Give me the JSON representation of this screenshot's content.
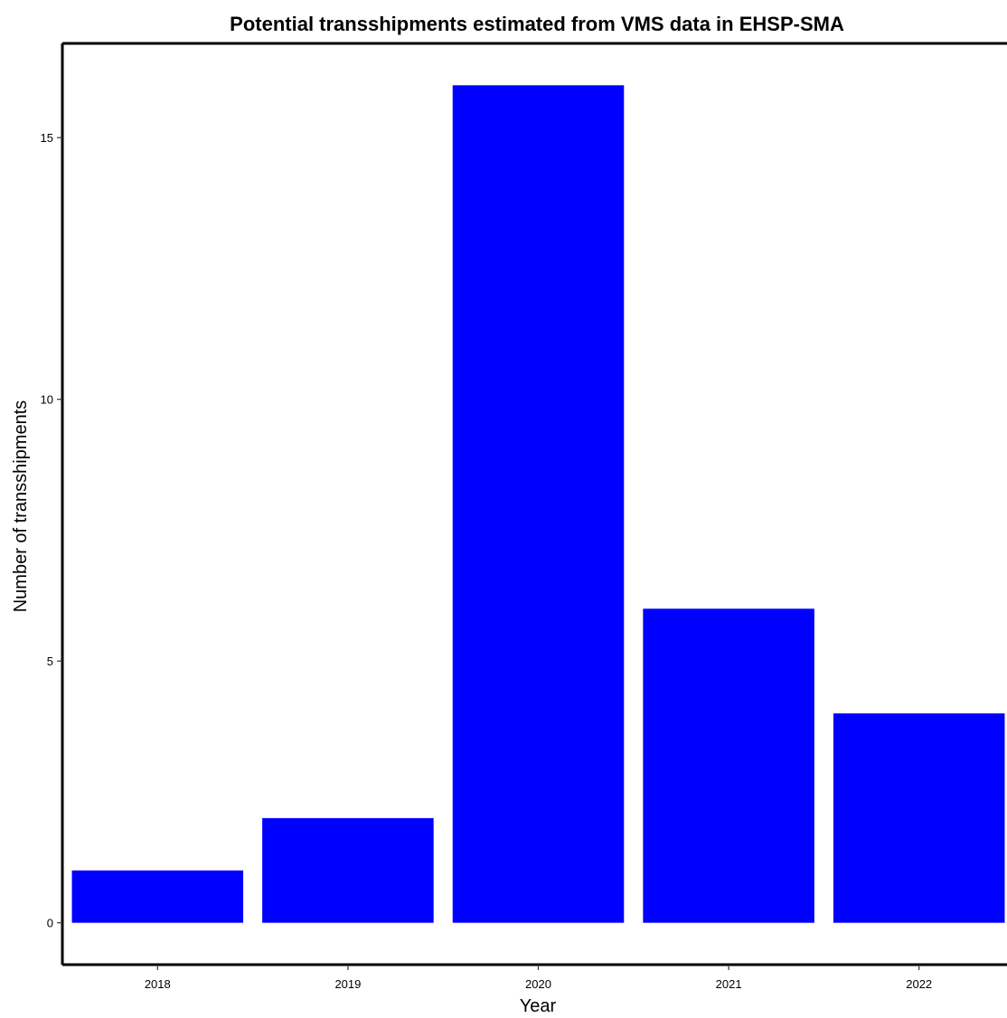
{
  "chart_data": {
    "type": "bar",
    "title": "Potential transshipments estimated from VMS data in EHSP-SMA",
    "xlabel": "Year",
    "ylabel": "Number of transshipments",
    "categories": [
      "2018",
      "2019",
      "2020",
      "2021",
      "2022"
    ],
    "values": [
      1,
      2,
      16,
      6,
      4
    ],
    "ylim": [
      -0.8,
      16.8
    ],
    "yticks": [
      0,
      5,
      10,
      15
    ],
    "bar_color": "#0000ff",
    "grid": false,
    "legend": "none"
  }
}
